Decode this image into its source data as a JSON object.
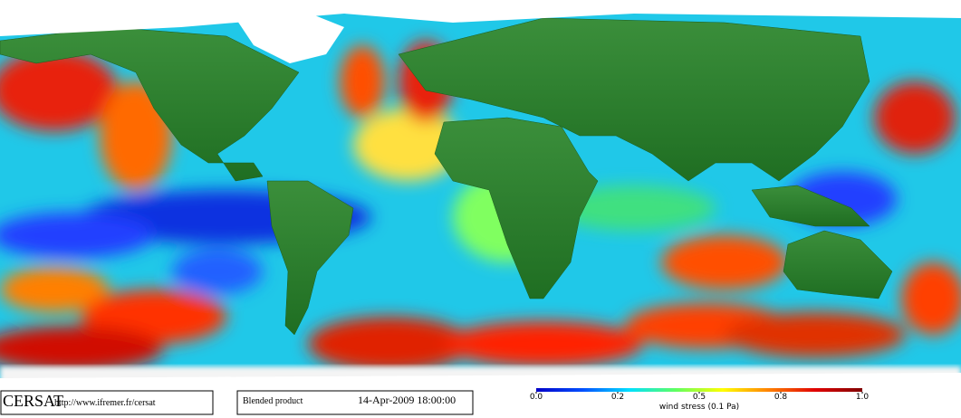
{
  "footer": {
    "logo": "CERSAT",
    "url": "http://www.ifremer.fr/cersat",
    "product": "Blended product",
    "date": "14-Apr-2009 18:00:00"
  },
  "colorbar": {
    "label": "wind stress (0.1 Pa)",
    "range": [
      0,
      1
    ],
    "ticks": [
      {
        "value": 0,
        "label": "0.0"
      },
      0.2,
      0.5,
      0.8,
      {
        "value": 1,
        "label": "1.0"
      }
    ],
    "colors": [
      "#0000c8",
      "#0050ff",
      "#00e0ff",
      "#60ff60",
      "#ffff00",
      "#ff8000",
      "#e00000",
      "#800000"
    ]
  }
}
